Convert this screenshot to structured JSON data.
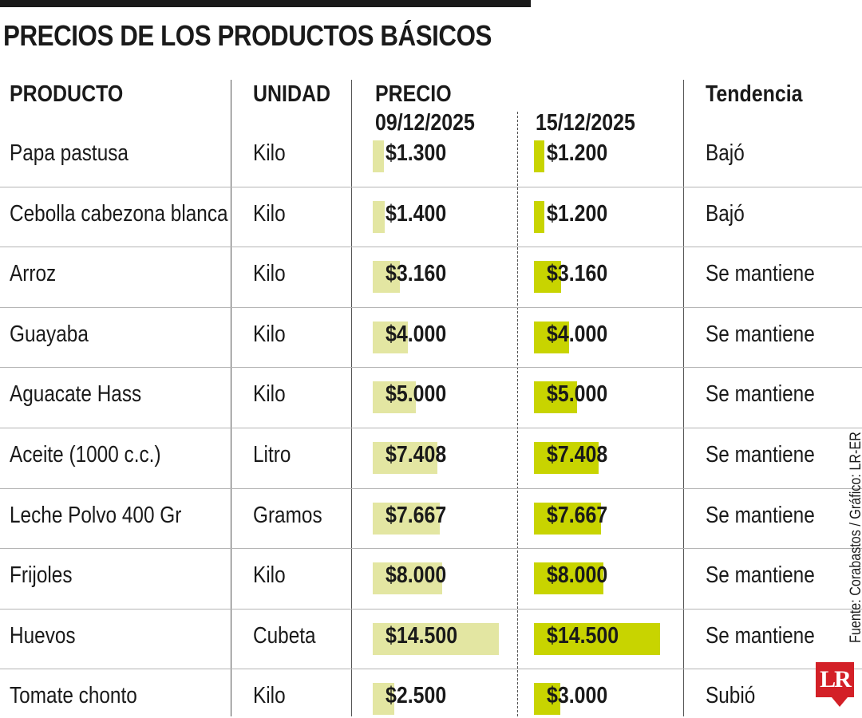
{
  "chart_data": {
    "type": "table",
    "title": "PRECIOS DE LOS PRODUCTOS BÁSICOS",
    "columns": {
      "product": "PRODUCTO",
      "unit": "UNIDAD",
      "price": "PRECIO",
      "date1": "09/12/2025",
      "date2": "15/12/2025",
      "trend": "Tendencia"
    },
    "bar_max": 14500,
    "rows": [
      {
        "product": "Papa pastusa",
        "unit": "Kilo",
        "v1": 1300,
        "v2": 1200,
        "p1": "$1.300",
        "p2": "$1.200",
        "trend": "Bajó"
      },
      {
        "product": "Cebolla cabezona blanca",
        "unit": "Kilo",
        "v1": 1400,
        "v2": 1200,
        "p1": "$1.400",
        "p2": "$1.200",
        "trend": "Bajó"
      },
      {
        "product": "Arroz",
        "unit": "Kilo",
        "v1": 3160,
        "v2": 3160,
        "p1": "$3.160",
        "p2": "$3.160",
        "trend": "Se mantiene"
      },
      {
        "product": "Guayaba",
        "unit": "Kilo",
        "v1": 4000,
        "v2": 4000,
        "p1": "$4.000",
        "p2": "$4.000",
        "trend": "Se mantiene"
      },
      {
        "product": "Aguacate Hass",
        "unit": "Kilo",
        "v1": 5000,
        "v2": 5000,
        "p1": "$5.000",
        "p2": "$5.000",
        "trend": "Se mantiene"
      },
      {
        "product": "Aceite (1000 c.c.)",
        "unit": "Litro",
        "v1": 7408,
        "v2": 7408,
        "p1": "$7.408",
        "p2": "$7.408",
        "trend": "Se mantiene"
      },
      {
        "product": "Leche Polvo 400 Gr",
        "unit": "Gramos",
        "v1": 7667,
        "v2": 7667,
        "p1": "$7.667",
        "p2": "$7.667",
        "trend": "Se mantiene"
      },
      {
        "product": "Frijoles",
        "unit": "Kilo",
        "v1": 8000,
        "v2": 8000,
        "p1": "$8.000",
        "p2": "$8.000",
        "trend": "Se mantiene"
      },
      {
        "product": "Huevos",
        "unit": "Cubeta",
        "v1": 14500,
        "v2": 14500,
        "p1": "$14.500",
        "p2": "$14.500",
        "trend": "Se mantiene"
      },
      {
        "product": "Tomate chonto",
        "unit": "Kilo",
        "v1": 2500,
        "v2": 3000,
        "p1": "$2.500",
        "p2": "$3.000",
        "trend": "Subió"
      }
    ],
    "colors": {
      "bar_old": "#e3e6a2",
      "bar_new": "#c8d400",
      "logo": "#d32027"
    }
  },
  "source": "Fuente: Corabastos / Gráfico: LR-ER",
  "logo_text": "LR"
}
